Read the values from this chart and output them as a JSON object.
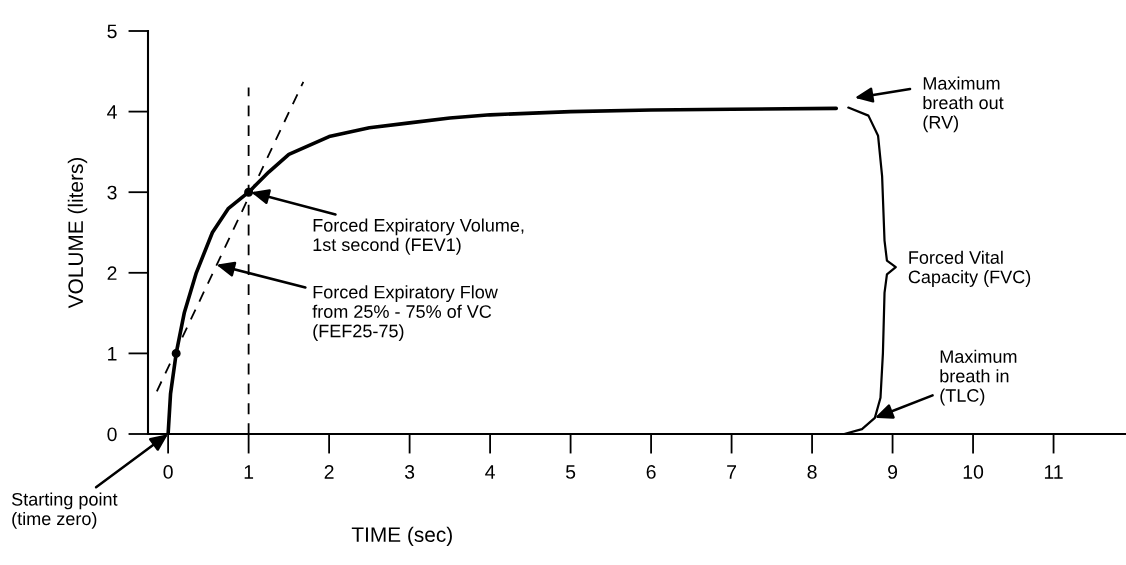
{
  "chart_data": {
    "type": "line",
    "xlabel": "TIME (sec)",
    "ylabel": "VOLUME (liters)",
    "xlim": [
      -0.25,
      11.9
    ],
    "ylim": [
      0,
      5
    ],
    "xticks": [
      0,
      1,
      2,
      3,
      4,
      5,
      6,
      7,
      8,
      9,
      10,
      11
    ],
    "yticks": [
      0,
      1,
      2,
      3,
      4,
      5
    ],
    "grid": false,
    "legend": false,
    "series": [
      {
        "color": "#000000",
        "line_style": "solid",
        "x": [
          0,
          0.03,
          0.1,
          0.2,
          0.35,
          0.55,
          0.75,
          1,
          1.25,
          1.5,
          2,
          2.5,
          3,
          3.5,
          4,
          5,
          6,
          7,
          8.3
        ],
        "values": [
          0,
          0.5,
          1,
          1.5,
          2,
          2.5,
          2.8,
          3,
          3.25,
          3.47,
          3.69,
          3.8,
          3.86,
          3.92,
          3.96,
          4.0,
          4.02,
          4.03,
          4.04
        ]
      },
      {
        "type": "line",
        "color": "#000000",
        "line_style": "dashed",
        "x": [
          -0.14,
          1.68
        ],
        "values": [
          0.53,
          4.37
        ]
      },
      {
        "type": "scatter",
        "color": "#000000",
        "marker": "circle",
        "x": [
          0.1,
          1
        ],
        "values": [
          1,
          3
        ]
      },
      {
        "type": "line",
        "color": "#000000",
        "line_style": "solid",
        "x": [
          8.45,
          8.7,
          8.82,
          8.87,
          8.9,
          8.93,
          9.04,
          8.93,
          8.9,
          8.88,
          8.85,
          8.78,
          8.62,
          8.4
        ],
        "values": [
          4.05,
          3.95,
          3.7,
          3.2,
          2.4,
          2.15,
          2.07,
          1.98,
          1.75,
          1.0,
          0.45,
          0.2,
          0.06,
          0
        ]
      }
    ],
    "ref_lines": [
      {
        "axis": "x",
        "value": 1,
        "line_style": "dashed",
        "color": "#000000"
      }
    ],
    "annotations": [
      {
        "text": "Starting point\n(time zero)",
        "x": 0,
        "y": 0
      },
      {
        "text": "Forced Expiratory Volume,\n1st second (FEV1)",
        "x": 1.03,
        "y": 3.0
      },
      {
        "text": "Forced Expiratory Flow\nfrom 25% - 75% of VC\n(FEF25-75)",
        "x": 0.6,
        "y": 2.1
      },
      "Maximum\nbreath out\n(RV)",
      "Forced Vital\nCapacity (FVC)",
      {
        "text": "Maximum\nbreath in\n(TLC)",
        "x": 8.78,
        "y": 0.2
      }
    ]
  }
}
